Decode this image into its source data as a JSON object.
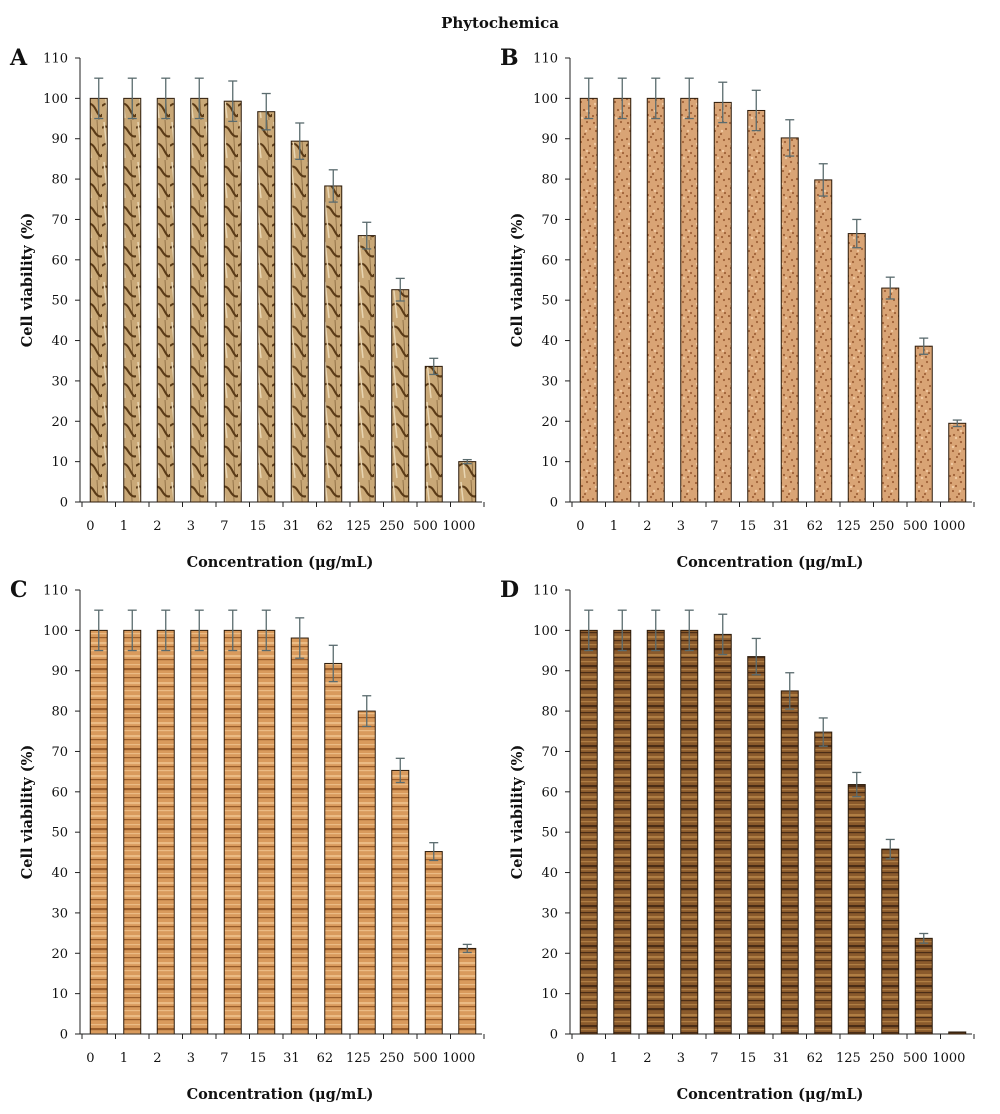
{
  "figure_title": "Phytochemica",
  "colors": {
    "A": {
      "base": "#c9a877",
      "dark": "#5a3a16",
      "light": "#e8d5b2"
    },
    "B": {
      "base": "#d9a475",
      "dark": "#8a4b22",
      "light": "#f0c9a2"
    },
    "C": {
      "base": "#d99a5c",
      "dark": "#8b4e1e",
      "light": "#f0c38e"
    },
    "D": {
      "base": "#8a5a2c",
      "dark": "#3b2210",
      "light": "#b9874a"
    },
    "error_bar": "#5a6b6e",
    "bar_outline": "#2b1a0a"
  },
  "chart_data": [
    {
      "panel": "A",
      "type": "bar",
      "title": "",
      "xlabel": "Concentration (μg/mL)",
      "ylabel": "Cell viability (%)",
      "ylim": [
        0,
        110
      ],
      "yticks": [
        0,
        10,
        20,
        30,
        40,
        50,
        60,
        70,
        80,
        90,
        100,
        110
      ],
      "categories": [
        "0",
        "1",
        "2",
        "3",
        "7",
        "15",
        "31",
        "62",
        "125",
        "250",
        "500",
        "1000"
      ],
      "values": [
        100,
        100,
        100,
        100,
        99.3,
        96.7,
        89.4,
        78.3,
        66.0,
        52.6,
        33.6,
        10.0
      ],
      "errors": [
        5,
        5,
        5,
        5,
        5,
        4.5,
        4.5,
        4,
        3.3,
        2.8,
        2,
        0.5
      ],
      "grid": false,
      "legend": "none"
    },
    {
      "panel": "B",
      "type": "bar",
      "title": "",
      "xlabel": "Concentration (μg/mL)",
      "ylabel": "Cell viability (%)",
      "ylim": [
        0,
        110
      ],
      "yticks": [
        0,
        10,
        20,
        30,
        40,
        50,
        60,
        70,
        80,
        90,
        100,
        110
      ],
      "categories": [
        "0",
        "1",
        "2",
        "3",
        "7",
        "15",
        "31",
        "62",
        "125",
        "250",
        "500",
        "1000"
      ],
      "values": [
        100,
        100,
        100,
        100,
        99.0,
        97.0,
        90.2,
        79.8,
        66.5,
        53.0,
        38.6,
        19.5
      ],
      "errors": [
        5,
        5,
        5,
        5,
        5,
        5,
        4.5,
        4,
        3.5,
        2.7,
        2,
        0.8
      ],
      "grid": false,
      "legend": "none"
    },
    {
      "panel": "C",
      "type": "bar",
      "title": "",
      "xlabel": "Concentration (μg/mL)",
      "ylabel": "Cell viability (%)",
      "ylim": [
        0,
        110
      ],
      "yticks": [
        0,
        10,
        20,
        30,
        40,
        50,
        60,
        70,
        80,
        90,
        100,
        110
      ],
      "categories": [
        "0",
        "1",
        "2",
        "3",
        "7",
        "15",
        "31",
        "62",
        "125",
        "250",
        "500",
        "1000"
      ],
      "values": [
        100,
        100,
        100,
        100,
        100,
        100,
        98.1,
        91.8,
        80.0,
        65.3,
        45.2,
        21.2
      ],
      "errors": [
        5,
        5,
        5,
        5,
        5,
        5,
        5,
        4.5,
        3.8,
        3,
        2.2,
        1
      ],
      "grid": false,
      "legend": "none"
    },
    {
      "panel": "D",
      "type": "bar",
      "title": "",
      "xlabel": "Concentration (μg/mL)",
      "ylabel": "Cell viability (%)",
      "ylim": [
        0,
        110
      ],
      "yticks": [
        0,
        10,
        20,
        30,
        40,
        50,
        60,
        70,
        80,
        90,
        100,
        110
      ],
      "categories": [
        "0",
        "1",
        "2",
        "3",
        "7",
        "15",
        "31",
        "62",
        "125",
        "250",
        "500",
        "1000"
      ],
      "values": [
        100,
        100,
        100,
        100,
        99.0,
        93.5,
        85.0,
        74.8,
        61.8,
        45.8,
        23.7,
        0.5
      ],
      "errors": [
        5,
        5,
        5,
        5,
        5,
        4.5,
        4.5,
        3.5,
        3,
        2.4,
        1.2,
        0
      ],
      "grid": false,
      "legend": "none"
    }
  ]
}
